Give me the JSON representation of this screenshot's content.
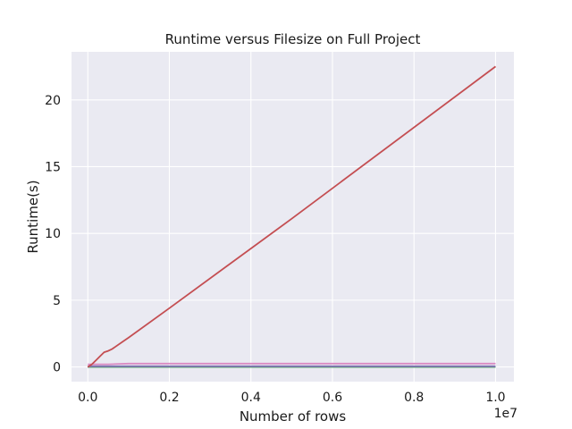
{
  "chart_data": {
    "type": "line",
    "title": "Runtime versus Filesize on Full Project",
    "xlabel": "Number of rows",
    "ylabel": "Runtime(s)",
    "x_offset_label": "1e7",
    "xlim": [
      -400000,
      10450000
    ],
    "ylim": [
      -1.1,
      23.6
    ],
    "x_ticks": [
      0,
      2000000,
      4000000,
      6000000,
      8000000,
      10000000
    ],
    "x_tick_labels": [
      "0.0",
      "0.2",
      "0.4",
      "0.6",
      "0.8",
      "1.0"
    ],
    "y_ticks": [
      0,
      5,
      10,
      15,
      20
    ],
    "y_tick_labels": [
      "0",
      "5",
      "10",
      "15",
      "20"
    ],
    "grid": true,
    "background": "#eaeaf2",
    "grid_color": "#ffffff",
    "series": [
      {
        "color": "#c44e52",
        "x": [
          0,
          100000,
          200000,
          300000,
          400000,
          500000,
          600000,
          1000000,
          2000000,
          5000000,
          10000000
        ],
        "y": [
          0.0,
          0.2,
          0.5,
          0.8,
          1.1,
          1.2,
          1.35,
          2.2,
          4.4,
          11.1,
          22.5
        ]
      },
      {
        "color": "#da8bc3",
        "x": [
          0,
          100000,
          200000,
          500000,
          1000000,
          2000000,
          5000000,
          10000000
        ],
        "y": [
          0.2,
          0.2,
          0.2,
          0.2,
          0.25,
          0.25,
          0.25,
          0.25
        ]
      },
      {
        "color": "#8172b3",
        "x": [
          0,
          1000000,
          5000000,
          10000000
        ],
        "y": [
          0.05,
          0.05,
          0.05,
          0.05
        ]
      },
      {
        "color": "#55a868",
        "x": [
          0,
          1000000,
          5000000,
          10000000
        ],
        "y": [
          0.0,
          0.0,
          0.0,
          0.0
        ]
      },
      {
        "color": "#4c72b0",
        "x": [
          0,
          1000000,
          5000000,
          10000000
        ],
        "y": [
          0.0,
          0.0,
          0.0,
          0.0
        ]
      },
      {
        "color": "#8c8c8c",
        "x": [
          0,
          1000000,
          5000000,
          10000000
        ],
        "y": [
          0.0,
          0.0,
          0.0,
          0.0
        ]
      },
      {
        "color": "#937860",
        "x": [
          0,
          1000000,
          5000000,
          10000000
        ],
        "y": [
          0.0,
          0.0,
          0.0,
          0.0
        ]
      },
      {
        "color": "#595959",
        "x": [
          0,
          1000000,
          5000000,
          10000000
        ],
        "y": [
          0.0,
          0.0,
          0.0,
          0.0
        ]
      }
    ]
  }
}
